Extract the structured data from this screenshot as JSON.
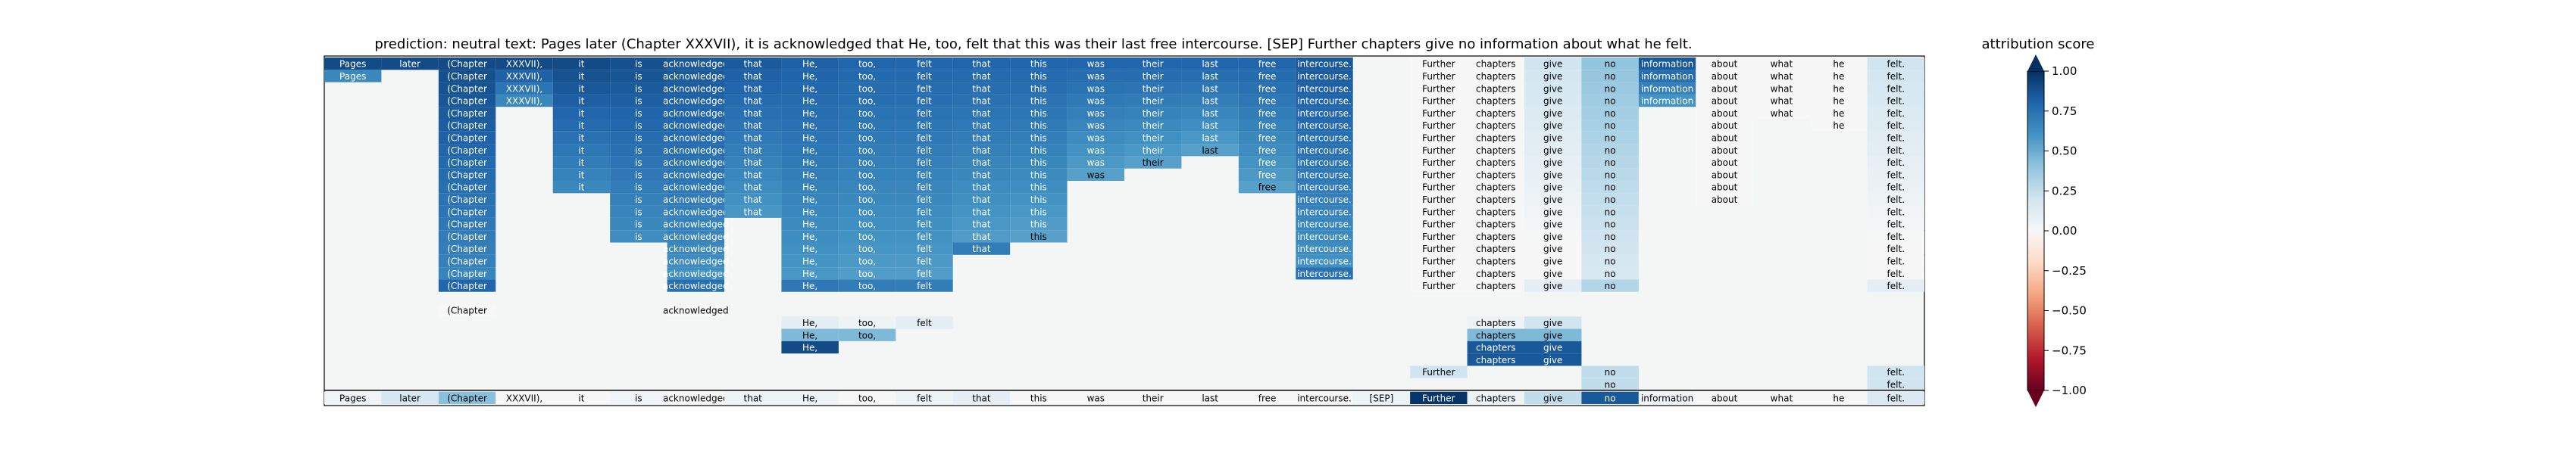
{
  "chart_data": {
    "type": "heatmap",
    "title": "prediction:  neutral     text:  Pages later (Chapter XXXVII), it is acknowledged that He, too, felt that this was their last free intercourse. [SEP] Further chapters give no information about what he felt.",
    "colorbar_label": "attribution score",
    "colorbar_range": [
      -1.0,
      1.0
    ],
    "colorbar_ticks": [
      "1.00",
      "0.75",
      "0.50",
      "0.25",
      "0.00",
      "−0.25",
      "−0.50",
      "−0.75",
      "−1.00"
    ],
    "colormap": [
      "#67001f",
      "#b2182b",
      "#d6604d",
      "#f4a582",
      "#fddbc7",
      "#f7f7f7",
      "#d1e5f0",
      "#92c5de",
      "#4393c3",
      "#2166ac",
      "#053061"
    ],
    "background_color": "#f4f6f6",
    "tokens": [
      "Pages",
      "later",
      "(Chapter",
      "XXXVII),",
      "it",
      "is",
      "acknowledged",
      "that",
      "He,",
      "too,",
      "felt",
      "that",
      "this",
      "was",
      "their",
      "last",
      "free",
      "intercourse.",
      "[SEP]",
      "Further",
      "chapters",
      "give",
      "no",
      "information",
      "about",
      "what",
      "he",
      "felt."
    ],
    "bottom_row_scores": [
      0.03,
      0.18,
      0.42,
      0.0,
      0.0,
      0.03,
      0.0,
      0.05,
      0.05,
      0.0,
      0.05,
      0.1,
      0.0,
      0.0,
      0.0,
      0.0,
      0.0,
      0.0,
      0.05,
      0.98,
      0.05,
      0.25,
      0.85,
      0.03,
      0.0,
      0.0,
      0.0,
      0.15
    ],
    "row_score_levels": [
      0.9,
      0.9,
      0.9,
      0.9,
      0.9,
      0.88,
      0.86,
      0.84,
      0.82,
      0.8,
      0.8,
      0.8,
      0.8,
      0.8,
      0.8,
      0.8,
      0.8,
      0.85,
      0.9,
      0.0,
      0.0,
      0.2,
      0.4,
      0.85,
      0.0,
      0.0,
      0.0,
      0.2
    ],
    "columns": [
      {
        "start": 0,
        "end": 1,
        "note": ""
      },
      {
        "start": 0,
        "end": 0,
        "note": ""
      },
      {
        "start": 0,
        "end": 18,
        "note": ""
      },
      {
        "start": 0,
        "end": 3,
        "note": ""
      },
      {
        "start": 0,
        "end": 10,
        "note": ""
      },
      {
        "start": 0,
        "end": 14,
        "note": ""
      },
      {
        "start": 0,
        "end": 18,
        "note": ""
      },
      {
        "start": 0,
        "end": 12,
        "note": ""
      },
      {
        "start": 0,
        "end": 18,
        "note": ""
      },
      {
        "start": 0,
        "end": 18,
        "note": ""
      },
      {
        "start": 0,
        "end": 18,
        "note": ""
      },
      {
        "start": 0,
        "end": 15,
        "note": ""
      },
      {
        "start": 0,
        "end": 14,
        "note": ""
      },
      {
        "start": 0,
        "end": 9,
        "note": ""
      },
      {
        "start": 0,
        "end": 8,
        "note": ""
      },
      {
        "start": 0,
        "end": 7,
        "note": ""
      },
      {
        "start": 0,
        "end": 10,
        "note": ""
      },
      {
        "start": 0,
        "end": 17,
        "note": ""
      },
      {
        "start": 0,
        "end": -1,
        "note": ""
      },
      {
        "start": 0,
        "end": 18,
        "note": ""
      },
      {
        "start": 0,
        "end": 18,
        "note": ""
      },
      {
        "start": 0,
        "end": 18,
        "note": ""
      },
      {
        "start": 0,
        "end": 18,
        "note": ""
      },
      {
        "start": 0,
        "end": 3,
        "note": ""
      },
      {
        "start": 0,
        "end": 11,
        "note": ""
      },
      {
        "start": 0,
        "end": 4,
        "note": ""
      },
      {
        "start": 0,
        "end": 5,
        "note": ""
      },
      {
        "start": 0,
        "end": 18,
        "note": ""
      }
    ],
    "extra_cells": [
      {
        "col": 2,
        "row": 20,
        "score": 0.0
      },
      {
        "col": 6,
        "row": 20,
        "score": 0.0
      },
      {
        "col": 8,
        "row": 21,
        "score": 0.1
      },
      {
        "col": 9,
        "row": 21,
        "score": 0.05
      },
      {
        "col": 10,
        "row": 21,
        "score": 0.1
      },
      {
        "col": 8,
        "row": 22,
        "score": 0.45
      },
      {
        "col": 9,
        "row": 22,
        "score": 0.45
      },
      {
        "col": 8,
        "row": 23,
        "score": 0.9
      },
      {
        "col": 20,
        "row": 21,
        "score": 0.05
      },
      {
        "col": 21,
        "row": 21,
        "score": 0.2
      },
      {
        "col": 20,
        "row": 22,
        "score": 0.45
      },
      {
        "col": 21,
        "row": 22,
        "score": 0.45
      },
      {
        "col": 20,
        "row": 23,
        "score": 0.85
      },
      {
        "col": 21,
        "row": 23,
        "score": 0.85
      },
      {
        "col": 20,
        "row": 24,
        "score": 0.85
      },
      {
        "col": 21,
        "row": 24,
        "score": 0.85
      },
      {
        "col": 19,
        "row": 25,
        "score": 0.2
      },
      {
        "col": 22,
        "row": 25,
        "score": 0.25
      },
      {
        "col": 22,
        "row": 26,
        "score": 0.25
      },
      {
        "col": 27,
        "row": 25,
        "score": 0.2
      },
      {
        "col": 27,
        "row": 26,
        "score": 0.2
      }
    ]
  }
}
